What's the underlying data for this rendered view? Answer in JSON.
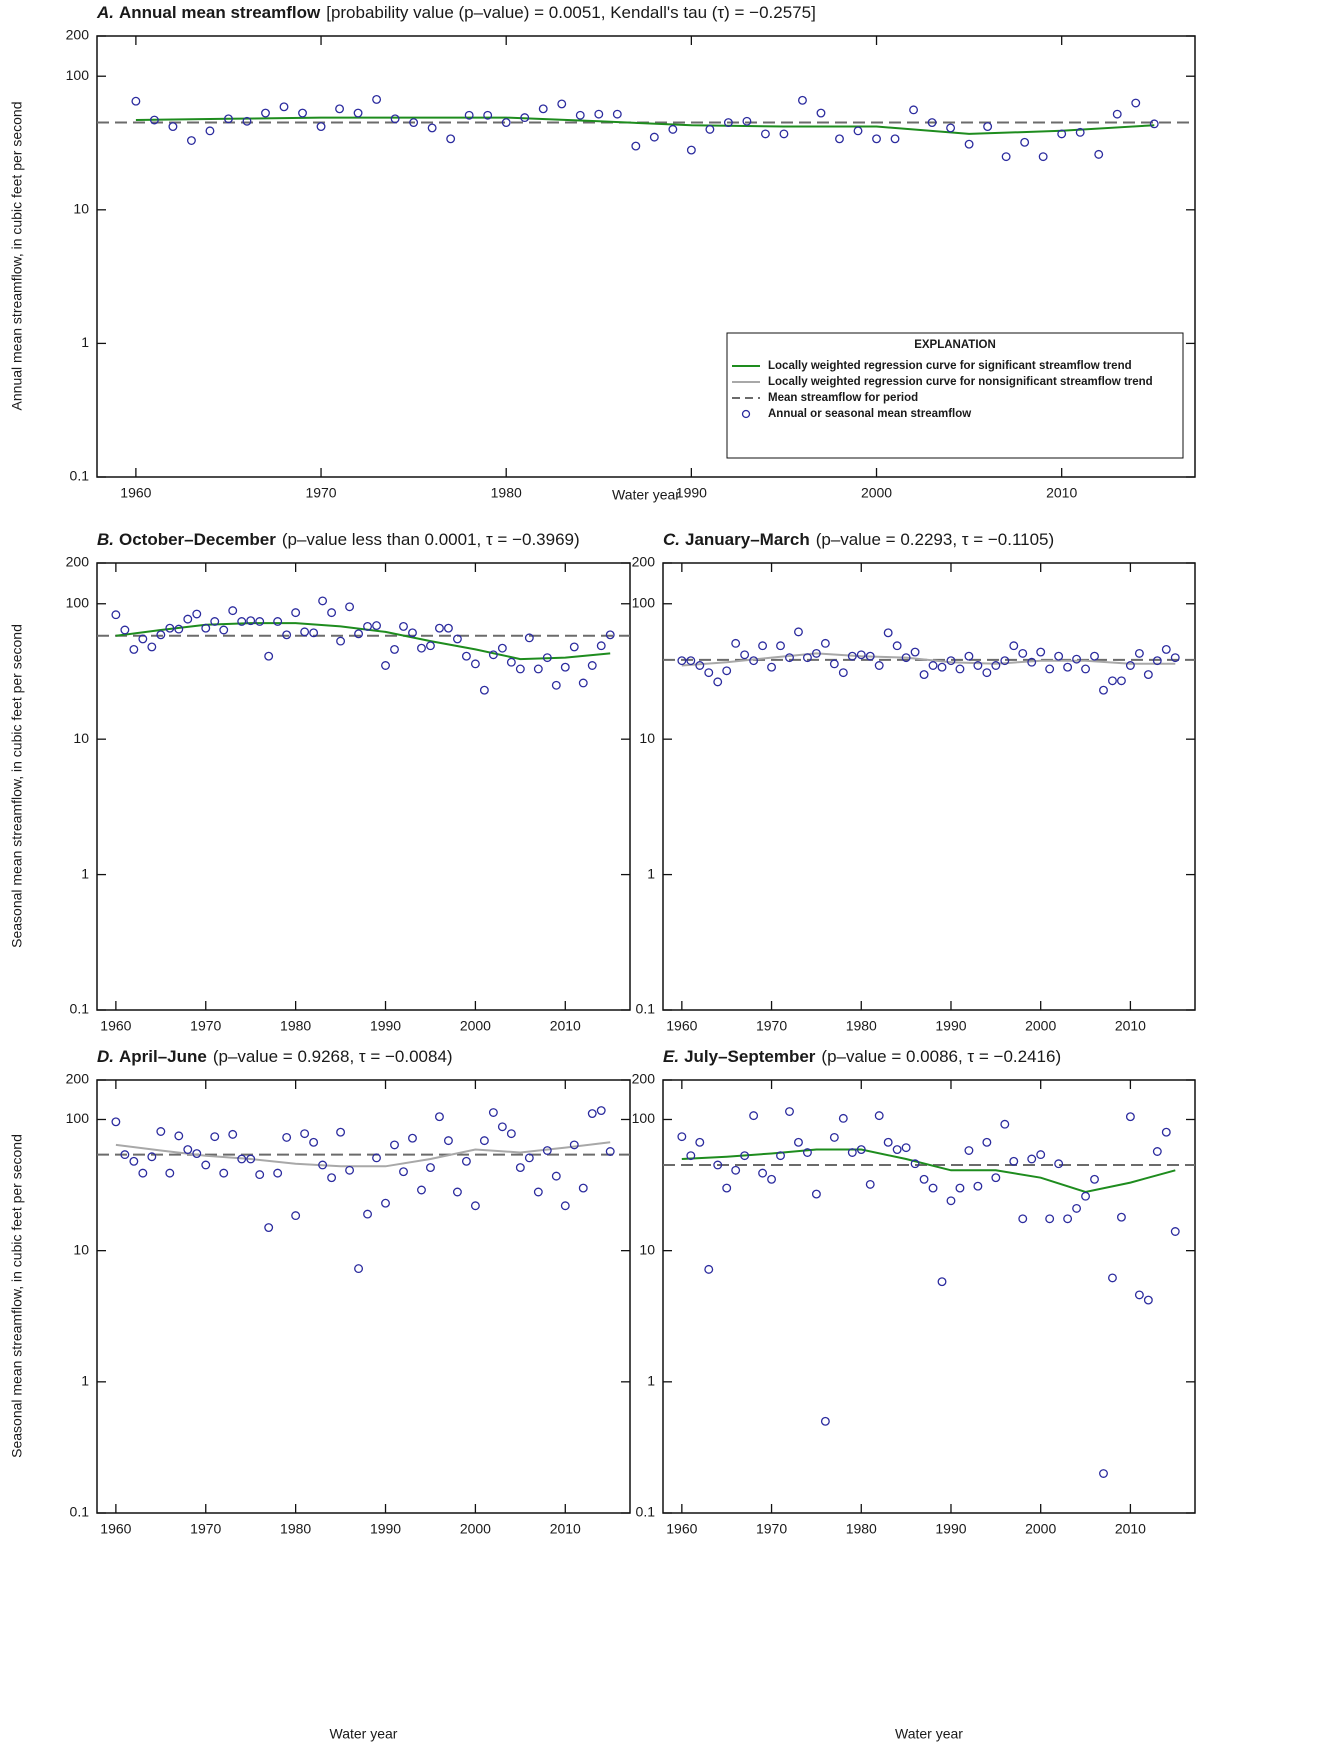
{
  "chart_data": [
    {
      "type": "scatter",
      "panel_label": "A.",
      "title": "Annual mean streamflow",
      "subtitle": "[probability value (p–value) = 0.0051, Kendall's tau (τ) = −0.2575]",
      "ylabel": "Annual mean streamflow, in cubic feet per second",
      "xlabel": "Water year",
      "log_y": true,
      "x": [
        1960,
        1961,
        1962,
        1963,
        1964,
        1965,
        1966,
        1967,
        1968,
        1969,
        1970,
        1971,
        1972,
        1973,
        1974,
        1975,
        1976,
        1977,
        1978,
        1979,
        1980,
        1981,
        1982,
        1983,
        1984,
        1985,
        1986,
        1987,
        1988,
        1989,
        1990,
        1991,
        1992,
        1993,
        1994,
        1995,
        1996,
        1997,
        1998,
        1999,
        2000,
        2001,
        2002,
        2003,
        2004,
        2005,
        2006,
        2007,
        2008,
        2009,
        2010,
        2011,
        2012,
        2013,
        2014,
        2015
      ],
      "values": [
        65,
        47,
        42,
        33,
        39,
        48,
        46,
        53,
        59,
        53,
        42,
        57,
        53,
        67,
        48,
        45,
        41,
        34,
        51,
        51,
        45,
        49,
        57,
        62,
        51,
        52,
        52,
        30,
        35,
        40,
        28,
        40,
        45,
        46,
        37,
        37,
        66,
        53,
        34,
        39,
        34,
        34,
        56,
        45,
        41,
        31,
        42,
        25,
        32,
        25,
        37,
        38,
        26,
        52,
        63,
        44
      ],
      "color": "#2b2b9e",
      "lowess": {
        "x": [
          1960,
          1965,
          1970,
          1975,
          1980,
          1985,
          1990,
          1995,
          2000,
          2005,
          2010,
          2015
        ],
        "values": [
          47,
          48,
          49,
          49,
          49,
          46,
          43,
          42,
          42,
          37,
          39,
          43
        ],
        "color": "#1e8c1e"
      },
      "mean": 45,
      "mean_color": "#6b6b6b",
      "xlim": [
        1957.9,
        2017.2
      ],
      "ylim": [
        0.1,
        200
      ],
      "xticks": [
        1960,
        1970,
        1980,
        1990,
        2000,
        2010
      ],
      "yticks": [
        0.1,
        1,
        10,
        100,
        200
      ],
      "legend": {
        "title": "EXPLANATION",
        "position": "lower right",
        "entries": [
          {
            "label": "Locally weighted regression curve for significant streamflow trend",
            "color": "#1e8c1e",
            "style": "solid"
          },
          {
            "label": "Locally weighted regression curve for nonsignificant streamflow trend",
            "color": "#a8a8a8",
            "style": "solid"
          },
          {
            "label": "Mean streamflow for period",
            "color": "#6b6b6b",
            "style": "dashed"
          },
          {
            "label": "Annual or seasonal mean streamflow",
            "color": "#2b2b9e",
            "style": "circle"
          }
        ]
      }
    },
    {
      "type": "scatter",
      "panel_label": "B.",
      "title": "October–December",
      "subtitle": "(p–value less than 0.0001, τ = −0.3969)",
      "ylabel": "Seasonal mean streamflow, in cubic feet per second",
      "log_y": true,
      "x": [
        1960,
        1961,
        1962,
        1963,
        1964,
        1965,
        1966,
        1967,
        1968,
        1969,
        1970,
        1971,
        1972,
        1973,
        1974,
        1975,
        1976,
        1977,
        1978,
        1979,
        1980,
        1981,
        1982,
        1983,
        1984,
        1985,
        1986,
        1987,
        1988,
        1989,
        1990,
        1991,
        1992,
        1993,
        1994,
        1995,
        1996,
        1997,
        1998,
        1999,
        2000,
        2001,
        2002,
        2003,
        2004,
        2005,
        2006,
        2007,
        2008,
        2009,
        2010,
        2011,
        2012,
        2013,
        2014,
        2015
      ],
      "values": [
        83,
        64,
        46,
        55,
        48,
        59,
        66,
        65,
        77,
        84,
        66,
        74,
        64,
        89,
        74,
        75,
        74,
        41,
        74,
        59,
        86,
        62,
        61,
        105,
        86,
        53,
        95,
        60,
        68,
        69,
        35,
        46,
        68,
        61,
        47,
        49,
        66,
        66,
        55,
        41,
        36,
        23,
        42,
        47,
        37,
        33,
        56,
        33,
        40,
        25,
        34,
        48,
        26,
        35,
        49,
        59
      ],
      "color": "#2b2b9e",
      "lowess": {
        "x": [
          1960,
          1965,
          1970,
          1975,
          1980,
          1985,
          1990,
          1995,
          2000,
          2005,
          2010,
          2015
        ],
        "values": [
          58,
          64,
          70,
          72,
          72,
          68,
          62,
          53,
          46,
          39,
          40,
          43
        ],
        "color": "#1e8c1e"
      },
      "mean": 58,
      "mean_color": "#6b6b6b",
      "xlim": [
        1957.9,
        2017.2
      ],
      "ylim": [
        0.1,
        200
      ],
      "xticks": [
        1960,
        1970,
        1980,
        1990,
        2000,
        2010
      ],
      "yticks": [
        0.1,
        1,
        10,
        100,
        200
      ]
    },
    {
      "type": "scatter",
      "panel_label": "C.",
      "title": "January–March",
      "subtitle": "(p–value = 0.2293, τ = −0.1105)",
      "log_y": true,
      "x": [
        1960,
        1961,
        1962,
        1963,
        1964,
        1965,
        1966,
        1967,
        1968,
        1969,
        1970,
        1971,
        1972,
        1973,
        1974,
        1975,
        1976,
        1977,
        1978,
        1979,
        1980,
        1981,
        1982,
        1983,
        1984,
        1985,
        1986,
        1987,
        1988,
        1989,
        1990,
        1991,
        1992,
        1993,
        1994,
        1995,
        1996,
        1997,
        1998,
        1999,
        2000,
        2001,
        2002,
        2003,
        2004,
        2005,
        2006,
        2007,
        2008,
        2009,
        2010,
        2011,
        2012,
        2013,
        2014,
        2015
      ],
      "values": [
        38,
        38,
        35,
        31,
        26.5,
        32,
        51,
        42,
        38,
        49,
        34,
        49,
        40,
        62,
        40,
        43,
        51,
        36,
        31,
        41,
        42,
        41,
        35,
        61,
        49,
        40,
        44,
        30,
        35,
        34,
        38,
        33,
        41,
        35,
        31,
        35,
        38,
        49,
        43,
        37,
        44,
        33,
        41,
        34,
        39,
        33,
        41,
        23,
        27,
        27,
        35,
        43,
        30,
        38,
        46,
        40
      ],
      "color": "#2b2b9e",
      "lowess": {
        "x": [
          1960,
          1965,
          1970,
          1975,
          1980,
          1985,
          1990,
          1995,
          2000,
          2005,
          2010,
          2015
        ],
        "values": [
          35,
          37,
          40,
          43,
          41,
          40,
          37,
          36,
          38,
          38,
          36,
          36
        ],
        "color": "#a8a8a8"
      },
      "mean": 38.5,
      "mean_color": "#6b6b6b",
      "xlim": [
        1957.9,
        2017.2
      ],
      "ylim": [
        0.1,
        200
      ],
      "xticks": [
        1960,
        1970,
        1980,
        1990,
        2000,
        2010
      ],
      "yticks": [
        0.1,
        1,
        10,
        100,
        200
      ]
    },
    {
      "type": "scatter",
      "panel_label": "D.",
      "title": "April–June",
      "subtitle": "(p–value = 0.9268, τ = −0.0084)",
      "ylabel": "Seasonal mean streamflow, in cubic feet per second",
      "xlabel": "Water year",
      "log_y": true,
      "x": [
        1960,
        1961,
        1962,
        1963,
        1964,
        1965,
        1966,
        1967,
        1968,
        1969,
        1970,
        1971,
        1972,
        1973,
        1974,
        1975,
        1976,
        1977,
        1978,
        1979,
        1980,
        1981,
        1982,
        1983,
        1984,
        1985,
        1986,
        1987,
        1988,
        1989,
        1990,
        1991,
        1992,
        1993,
        1994,
        1995,
        1996,
        1997,
        1998,
        1999,
        2000,
        2001,
        2002,
        2003,
        2004,
        2005,
        2006,
        2007,
        2008,
        2009,
        2010,
        2011,
        2012,
        2013,
        2014,
        2015
      ],
      "values": [
        96,
        54,
        48,
        39,
        52,
        81,
        39,
        75,
        59,
        55,
        45,
        74,
        39,
        77,
        50,
        50,
        38,
        15,
        39,
        73,
        18.5,
        78,
        67,
        45,
        36,
        80,
        41,
        7.3,
        19,
        51,
        23,
        64,
        40,
        72,
        29,
        43,
        105,
        69,
        28,
        48,
        22,
        69,
        113,
        88,
        78,
        43,
        51,
        28,
        58,
        37,
        22,
        64,
        30,
        111,
        117,
        57
      ],
      "color": "#2b2b9e",
      "lowess": {
        "x": [
          1960,
          1965,
          1970,
          1975,
          1980,
          1985,
          1990,
          1995,
          2000,
          2005,
          2010,
          2015
        ],
        "values": [
          64,
          58,
          53,
          50,
          46,
          44,
          44,
          50,
          59,
          56,
          61,
          67
        ],
        "color": "#a8a8a8"
      },
      "mean": 54,
      "mean_color": "#6b6b6b",
      "xlim": [
        1957.9,
        2017.2
      ],
      "ylim": [
        0.1,
        200
      ],
      "xticks": [
        1960,
        1970,
        1980,
        1990,
        2000,
        2010
      ],
      "yticks": [
        0.1,
        1,
        10,
        100,
        200
      ]
    },
    {
      "type": "scatter",
      "panel_label": "E.",
      "title": "July–September",
      "subtitle": "(p–value = 0.0086, τ = −0.2416)",
      "xlabel": "Water year",
      "log_y": true,
      "x": [
        1960,
        1961,
        1962,
        1963,
        1964,
        1965,
        1966,
        1967,
        1968,
        1969,
        1970,
        1971,
        1972,
        1973,
        1974,
        1975,
        1976,
        1977,
        1978,
        1979,
        1980,
        1981,
        1982,
        1983,
        1984,
        1985,
        1986,
        1987,
        1988,
        1989,
        1990,
        1991,
        1992,
        1993,
        1994,
        1995,
        1996,
        1997,
        1998,
        1999,
        2000,
        2001,
        2002,
        2003,
        2004,
        2005,
        2006,
        2007,
        2008,
        2009,
        2010,
        2011,
        2012,
        2013,
        2014,
        2015
      ],
      "values": [
        74,
        53,
        67,
        7.2,
        45,
        30,
        41,
        53,
        107,
        39,
        35,
        53,
        115,
        67,
        56,
        27,
        0.5,
        73,
        102,
        56,
        59,
        32,
        107,
        67,
        59,
        61,
        46,
        35,
        30,
        5.8,
        24,
        30,
        58,
        31,
        67,
        36,
        92,
        48,
        17.5,
        50,
        54,
        17.5,
        46,
        17.5,
        21,
        26,
        35,
        0.2,
        6.2,
        18,
        105,
        4.6,
        4.2,
        57,
        80,
        14
      ],
      "color": "#2b2b9e",
      "lowess": {
        "x": [
          1960,
          1965,
          1970,
          1975,
          1980,
          1985,
          1990,
          1995,
          2000,
          2005,
          2010,
          2015
        ],
        "values": [
          50,
          52,
          55,
          59,
          59,
          50,
          41,
          41,
          36,
          28,
          33,
          41
        ],
        "color": "#1e8c1e"
      },
      "mean": 45,
      "mean_color": "#6b6b6b",
      "xlim": [
        1957.9,
        2017.2
      ],
      "ylim": [
        0.1,
        200
      ],
      "xticks": [
        1960,
        1970,
        1980,
        1990,
        2000,
        2010
      ],
      "yticks": [
        0.1,
        1,
        10,
        100,
        200
      ]
    }
  ]
}
